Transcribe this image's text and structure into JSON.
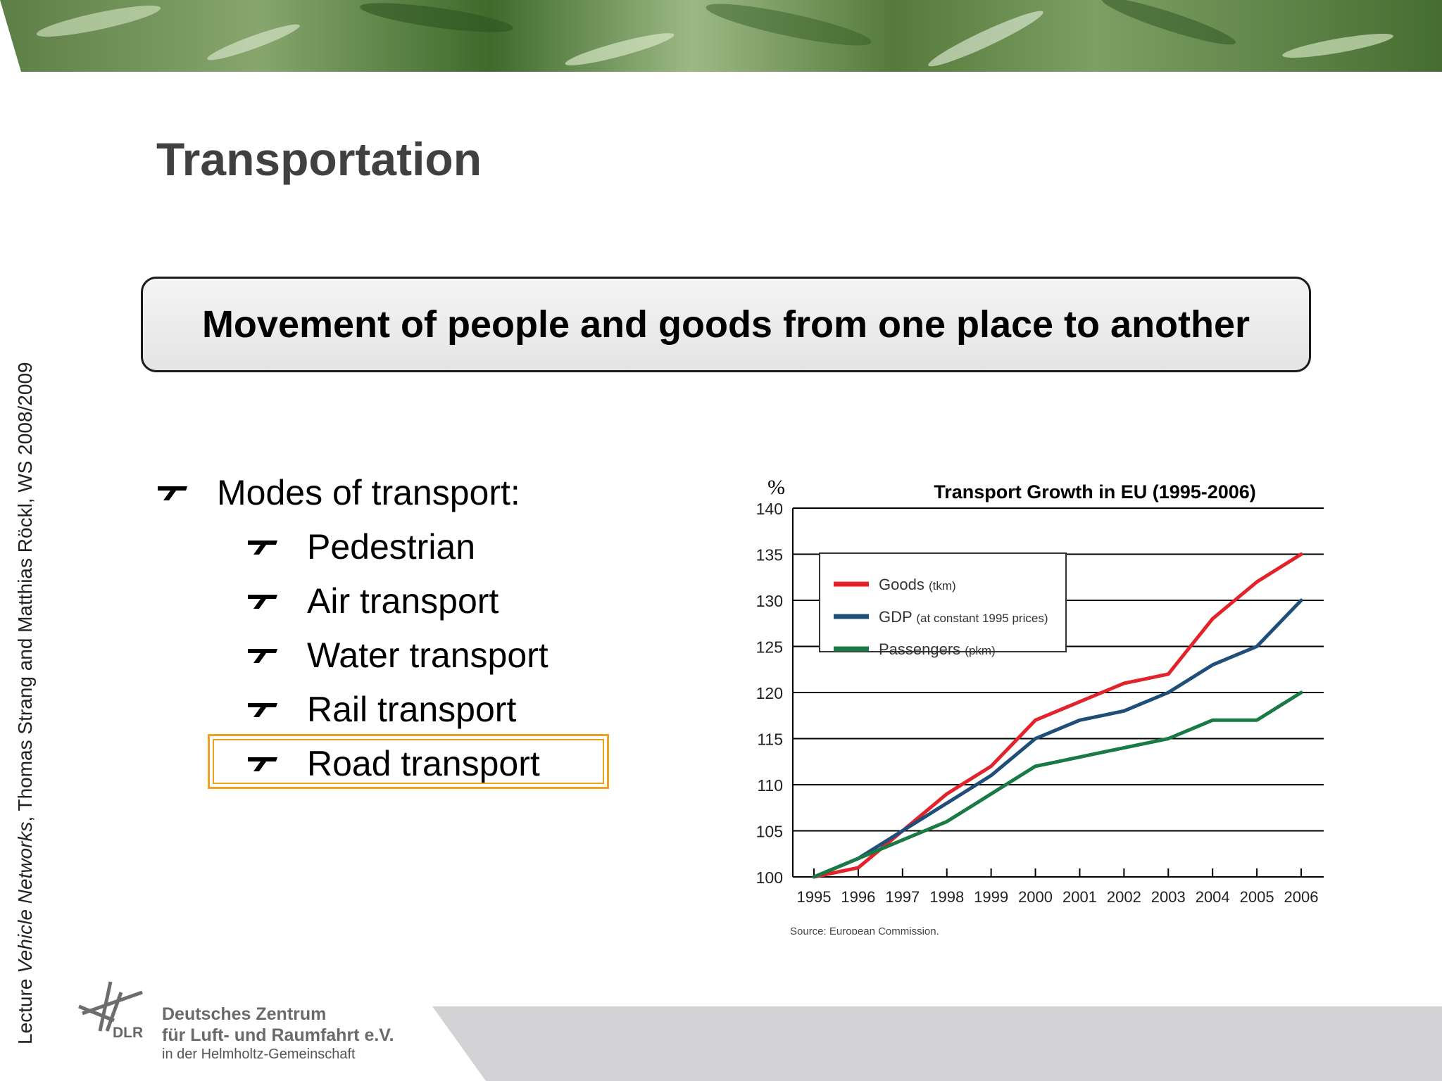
{
  "slide": {
    "title": "Transportation",
    "definition": "Movement of people and goods from one place to another",
    "side_note": {
      "prefix": "Lecture ",
      "course": "Vehicle Networks",
      "rest": ", Thomas Strang and Matthias Röckl, WS 2008/2009"
    },
    "bullets": {
      "main": "Modes of transport:",
      "items": [
        "Pedestrian",
        "Air transport",
        "Water transport",
        "Rail transport",
        "Road transport"
      ],
      "highlighted": "Road transport"
    }
  },
  "footer": {
    "dlr": "DLR",
    "org_line1": "Deutsches Zentrum",
    "org_line2": "für Luft- und Raumfahrt e.V.",
    "org_line3": "in der Helmholtz-Gemeinschaft"
  },
  "colors": {
    "goods": "#e3232b",
    "gdp": "#1f4e79",
    "passengers": "#1a7a45",
    "highlight": "#f0a020"
  },
  "chart_data": {
    "type": "line",
    "title": "Transport Growth in EU (1995-2006)",
    "ylabel": "%",
    "xlabel": "",
    "ylim": [
      100,
      140
    ],
    "yticks": [
      100,
      105,
      110,
      115,
      120,
      125,
      130,
      135,
      140
    ],
    "categories": [
      "1995",
      "1996",
      "1997",
      "1998",
      "1999",
      "2000",
      "2001",
      "2002",
      "2003",
      "2004",
      "2005",
      "2006"
    ],
    "x": [
      1995,
      1995.5,
      1996,
      1996.5,
      1997,
      1997.5,
      1998,
      1998.5,
      1999,
      1999.5,
      2000,
      2000.5,
      2001,
      2001.5,
      2002,
      2002.5,
      2003,
      2003.5,
      2004,
      2004.5,
      2005,
      2005.5,
      2006
    ],
    "series": [
      {
        "name": "Goods",
        "unit": "(tkm)",
        "color": "#e3232b",
        "values": [
          100,
          100.5,
          101,
          103,
          105,
          107,
          109,
          110.5,
          112,
          114.5,
          117,
          118,
          119,
          120,
          121,
          121.5,
          122,
          125,
          128,
          130,
          132,
          133.5,
          135
        ]
      },
      {
        "name": "GDP",
        "unit": "(at constant 1995 prices)",
        "color": "#1f4e79",
        "values": [
          100,
          101,
          102,
          103.5,
          105,
          106.5,
          108,
          109.5,
          111,
          113,
          115,
          116,
          117,
          117.5,
          118,
          119,
          120,
          121.5,
          123,
          124,
          125,
          127.5,
          130
        ]
      },
      {
        "name": "Passengers",
        "unit": "(pkm)",
        "color": "#1a7a45",
        "values": [
          100,
          101,
          102,
          103,
          104,
          105,
          106,
          107.5,
          109,
          110.5,
          112,
          112.5,
          113,
          113.5,
          114,
          114.5,
          115,
          116,
          117,
          117,
          117,
          118.5,
          120
        ]
      }
    ],
    "legend_position": "top-left",
    "grid": "horizontal",
    "source": "Source: European Commission."
  }
}
